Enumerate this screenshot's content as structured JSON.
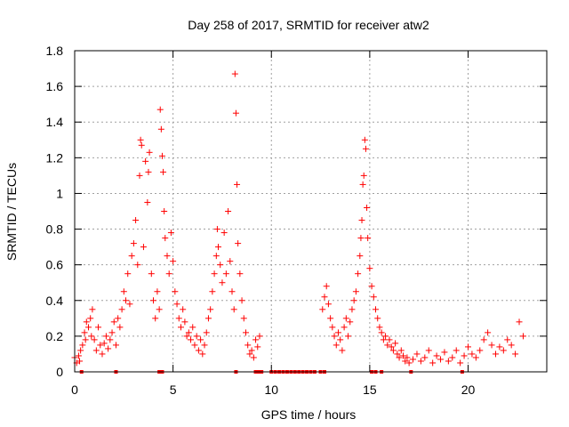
{
  "chart_data": {
    "type": "scatter",
    "title": "Day 258 of 2017, SRMTID for receiver atw2",
    "xlabel": "GPS time / hours",
    "ylabel": "SRMTID / TECUs",
    "xlim": [
      0,
      24
    ],
    "ylim": [
      0,
      1.8
    ],
    "x_ticks": [
      0,
      5,
      10,
      15,
      20
    ],
    "y_ticks": [
      0,
      0.2,
      0.4,
      0.6,
      0.8,
      1.0,
      1.2,
      1.4,
      1.6,
      1.8
    ],
    "x_tick_labels": [
      "0",
      "5",
      "10",
      "15",
      "20"
    ],
    "y_tick_labels": [
      "0",
      "0.2",
      "0.4",
      "0.6",
      "0.8",
      "1",
      "1.2",
      "1.4",
      "1.6",
      "1.8"
    ],
    "grid": true,
    "marker": "plus",
    "color": "#ff0000",
    "series": [
      {
        "name": "atw2",
        "points": [
          [
            0.0,
            0.08
          ],
          [
            0.1,
            0.05
          ],
          [
            0.2,
            0.09
          ],
          [
            0.25,
            0.06
          ],
          [
            0.3,
            0.12
          ],
          [
            0.4,
            0.15
          ],
          [
            0.5,
            0.22
          ],
          [
            0.55,
            0.18
          ],
          [
            0.6,
            0.28
          ],
          [
            0.7,
            0.25
          ],
          [
            0.8,
            0.3
          ],
          [
            0.85,
            0.2
          ],
          [
            0.9,
            0.35
          ],
          [
            1.0,
            0.18
          ],
          [
            1.1,
            0.12
          ],
          [
            1.2,
            0.25
          ],
          [
            1.3,
            0.15
          ],
          [
            1.4,
            0.1
          ],
          [
            1.5,
            0.16
          ],
          [
            1.6,
            0.2
          ],
          [
            1.7,
            0.13
          ],
          [
            1.8,
            0.18
          ],
          [
            1.9,
            0.22
          ],
          [
            2.0,
            0.28
          ],
          [
            2.1,
            0.15
          ],
          [
            2.2,
            0.3
          ],
          [
            2.3,
            0.25
          ],
          [
            2.4,
            0.35
          ],
          [
            2.5,
            0.45
          ],
          [
            2.6,
            0.4
          ],
          [
            2.7,
            0.55
          ],
          [
            2.8,
            0.38
          ],
          [
            2.9,
            0.65
          ],
          [
            3.0,
            0.72
          ],
          [
            3.1,
            0.85
          ],
          [
            3.2,
            0.6
          ],
          [
            3.3,
            1.1
          ],
          [
            3.35,
            1.3
          ],
          [
            3.4,
            1.27
          ],
          [
            3.5,
            0.7
          ],
          [
            3.6,
            1.18
          ],
          [
            3.7,
            0.95
          ],
          [
            3.75,
            1.12
          ],
          [
            3.8,
            1.23
          ],
          [
            3.9,
            0.55
          ],
          [
            4.0,
            0.4
          ],
          [
            4.1,
            0.3
          ],
          [
            4.2,
            0.45
          ],
          [
            4.3,
            0.35
          ],
          [
            4.35,
            1.47
          ],
          [
            4.4,
            1.36
          ],
          [
            4.45,
            1.21
          ],
          [
            4.5,
            1.12
          ],
          [
            4.55,
            0.9
          ],
          [
            4.6,
            0.75
          ],
          [
            4.7,
            0.65
          ],
          [
            4.8,
            0.55
          ],
          [
            4.9,
            0.78
          ],
          [
            5.0,
            0.62
          ],
          [
            5.1,
            0.45
          ],
          [
            5.2,
            0.38
          ],
          [
            5.3,
            0.3
          ],
          [
            5.4,
            0.25
          ],
          [
            5.5,
            0.35
          ],
          [
            5.6,
            0.28
          ],
          [
            5.7,
            0.2
          ],
          [
            5.8,
            0.22
          ],
          [
            5.9,
            0.18
          ],
          [
            6.0,
            0.25
          ],
          [
            6.1,
            0.15
          ],
          [
            6.2,
            0.2
          ],
          [
            6.3,
            0.12
          ],
          [
            6.4,
            0.18
          ],
          [
            6.5,
            0.1
          ],
          [
            6.6,
            0.15
          ],
          [
            6.7,
            0.22
          ],
          [
            6.8,
            0.3
          ],
          [
            6.9,
            0.35
          ],
          [
            7.0,
            0.45
          ],
          [
            7.1,
            0.55
          ],
          [
            7.2,
            0.65
          ],
          [
            7.25,
            0.8
          ],
          [
            7.3,
            0.7
          ],
          [
            7.4,
            0.6
          ],
          [
            7.5,
            0.5
          ],
          [
            7.6,
            0.78
          ],
          [
            7.7,
            0.55
          ],
          [
            7.8,
            0.9
          ],
          [
            7.9,
            0.62
          ],
          [
            8.0,
            0.45
          ],
          [
            8.1,
            0.35
          ],
          [
            8.15,
            1.67
          ],
          [
            8.2,
            1.45
          ],
          [
            8.25,
            1.05
          ],
          [
            8.3,
            0.72
          ],
          [
            8.4,
            0.55
          ],
          [
            8.5,
            0.4
          ],
          [
            8.6,
            0.3
          ],
          [
            8.7,
            0.22
          ],
          [
            8.8,
            0.15
          ],
          [
            8.9,
            0.1
          ],
          [
            9.0,
            0.12
          ],
          [
            9.1,
            0.08
          ],
          [
            9.2,
            0.18
          ],
          [
            9.3,
            0.14
          ],
          [
            9.4,
            0.2
          ],
          [
            12.6,
            0.35
          ],
          [
            12.7,
            0.42
          ],
          [
            12.8,
            0.48
          ],
          [
            12.9,
            0.38
          ],
          [
            13.0,
            0.3
          ],
          [
            13.1,
            0.25
          ],
          [
            13.2,
            0.2
          ],
          [
            13.3,
            0.15
          ],
          [
            13.4,
            0.22
          ],
          [
            13.5,
            0.18
          ],
          [
            13.6,
            0.12
          ],
          [
            13.7,
            0.25
          ],
          [
            13.8,
            0.3
          ],
          [
            13.9,
            0.2
          ],
          [
            14.0,
            0.28
          ],
          [
            14.1,
            0.35
          ],
          [
            14.2,
            0.4
          ],
          [
            14.3,
            0.45
          ],
          [
            14.4,
            0.55
          ],
          [
            14.5,
            0.65
          ],
          [
            14.55,
            0.75
          ],
          [
            14.6,
            0.85
          ],
          [
            14.65,
            1.05
          ],
          [
            14.7,
            1.1
          ],
          [
            14.75,
            1.3
          ],
          [
            14.8,
            1.25
          ],
          [
            14.85,
            0.92
          ],
          [
            14.9,
            0.75
          ],
          [
            15.0,
            0.58
          ],
          [
            15.1,
            0.48
          ],
          [
            15.2,
            0.42
          ],
          [
            15.3,
            0.35
          ],
          [
            15.4,
            0.3
          ],
          [
            15.5,
            0.25
          ],
          [
            15.6,
            0.22
          ],
          [
            15.7,
            0.18
          ],
          [
            15.8,
            0.2
          ],
          [
            15.9,
            0.15
          ],
          [
            16.0,
            0.18
          ],
          [
            16.1,
            0.14
          ],
          [
            16.2,
            0.12
          ],
          [
            16.3,
            0.16
          ],
          [
            16.4,
            0.1
          ],
          [
            16.5,
            0.08
          ],
          [
            16.6,
            0.12
          ],
          [
            16.7,
            0.09
          ],
          [
            16.8,
            0.06
          ],
          [
            16.9,
            0.08
          ],
          [
            17.0,
            0.05
          ],
          [
            17.2,
            0.07
          ],
          [
            17.4,
            0.1
          ],
          [
            17.6,
            0.06
          ],
          [
            17.8,
            0.08
          ],
          [
            18.0,
            0.12
          ],
          [
            18.2,
            0.05
          ],
          [
            18.4,
            0.09
          ],
          [
            18.6,
            0.07
          ],
          [
            18.8,
            0.11
          ],
          [
            19.0,
            0.06
          ],
          [
            19.2,
            0.08
          ],
          [
            19.4,
            0.12
          ],
          [
            19.6,
            0.05
          ],
          [
            19.8,
            0.09
          ],
          [
            20.0,
            0.14
          ],
          [
            20.2,
            0.1
          ],
          [
            20.4,
            0.08
          ],
          [
            20.6,
            0.12
          ],
          [
            20.8,
            0.18
          ],
          [
            21.0,
            0.22
          ],
          [
            21.2,
            0.15
          ],
          [
            21.4,
            0.1
          ],
          [
            21.6,
            0.14
          ],
          [
            21.8,
            0.12
          ],
          [
            22.0,
            0.18
          ],
          [
            22.2,
            0.15
          ],
          [
            22.4,
            0.1
          ],
          [
            22.6,
            0.28
          ],
          [
            22.8,
            0.2
          ]
        ],
        "floor_points": [
          0.35,
          2.1,
          4.3,
          4.45,
          8.2,
          9.2,
          9.35,
          9.5,
          10.0,
          10.2,
          10.4,
          10.6,
          10.8,
          11.0,
          11.2,
          11.4,
          11.6,
          11.8,
          12.0,
          12.2,
          12.5,
          12.7,
          15.1,
          15.3,
          15.6,
          17.1,
          19.7
        ]
      }
    ]
  }
}
